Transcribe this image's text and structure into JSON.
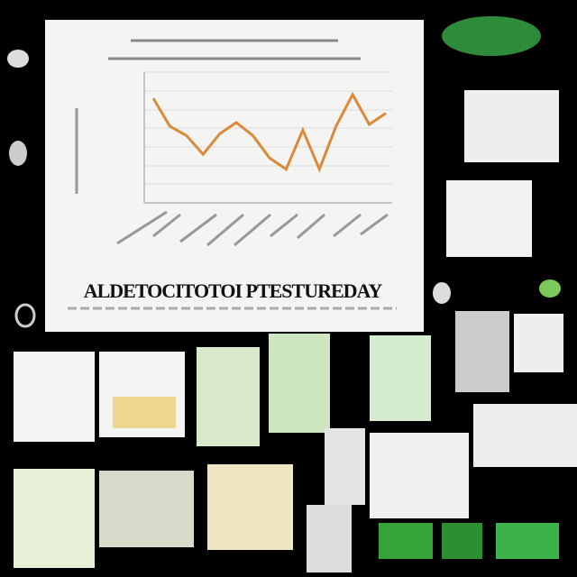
{
  "main_panel": {
    "caption": "ALDETOCITOTOI PTESTUREDAY",
    "chart": {
      "type": "line",
      "color": "#d98a3a",
      "values": [
        5.6,
        4.1,
        3.6,
        2.6,
        3.7,
        4.3,
        3.6,
        2.4,
        1.8,
        3.9,
        1.8,
        4.1,
        5.8,
        4.2,
        4.8
      ],
      "ylim": [
        0,
        7
      ]
    }
  }
}
